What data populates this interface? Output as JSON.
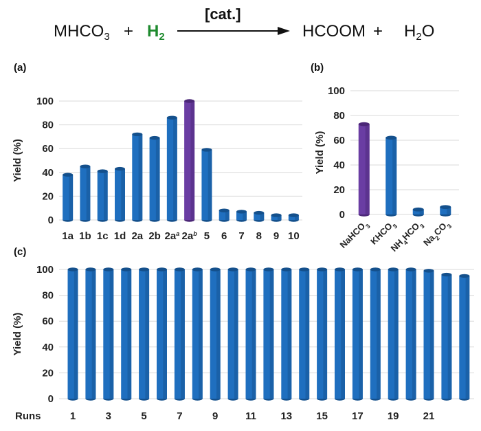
{
  "scheme": {
    "reactant1_main": "MHCO",
    "reactant1_sub": "3",
    "plus1": "+",
    "reactant2_main": "H",
    "reactant2_sub": "2",
    "catalyst": "[cat.]",
    "product1": "HCOOM",
    "plus2": "+",
    "product2_main": "H",
    "product2_sub": "2",
    "product2_tail": "O",
    "reactant2_color": "#1e8a2e"
  },
  "colors": {
    "bar_blue": "#1f6fbf",
    "bar_blue_dark": "#14508c",
    "bar_purple": "#6a3da3",
    "bar_purple_dark": "#4b2777",
    "grid": "#d9d9d9"
  },
  "chart_data": [
    {
      "panel": "(a)",
      "type": "bar",
      "ylabel": "Yield (%)",
      "ylim": [
        0,
        100
      ],
      "yticks": [
        0,
        20,
        40,
        60,
        80,
        100
      ],
      "categories": [
        {
          "base": "1a",
          "sup": ""
        },
        {
          "base": "1b",
          "sup": ""
        },
        {
          "base": "1c",
          "sup": ""
        },
        {
          "base": "1d",
          "sup": ""
        },
        {
          "base": "2a",
          "sup": ""
        },
        {
          "base": "2b",
          "sup": ""
        },
        {
          "base": "2a",
          "sup": "a"
        },
        {
          "base": "2a",
          "sup": "b"
        },
        {
          "base": "5",
          "sup": ""
        },
        {
          "base": "6",
          "sup": ""
        },
        {
          "base": "7",
          "sup": ""
        },
        {
          "base": "8",
          "sup": ""
        },
        {
          "base": "9",
          "sup": ""
        },
        {
          "base": "10",
          "sup": ""
        }
      ],
      "values": [
        38,
        45,
        41,
        43,
        72,
        69,
        86,
        100,
        59,
        8,
        7,
        6,
        4,
        4
      ],
      "highlight_index": 7
    },
    {
      "panel": "(b)",
      "type": "bar",
      "ylabel": "Yield (%)",
      "ylim": [
        0,
        100
      ],
      "yticks": [
        0,
        20,
        40,
        60,
        80,
        100
      ],
      "categories": [
        {
          "parts": [
            {
              "t": "NaHCO",
              "s": ""
            },
            {
              "t": "3",
              "s": "sub"
            }
          ]
        },
        {
          "parts": [
            {
              "t": "KHCO",
              "s": ""
            },
            {
              "t": "3",
              "s": "sub"
            }
          ]
        },
        {
          "parts": [
            {
              "t": "NH",
              "s": ""
            },
            {
              "t": "4",
              "s": "sub"
            },
            {
              "t": "HCO",
              "s": ""
            },
            {
              "t": "3",
              "s": "sub"
            }
          ]
        },
        {
          "parts": [
            {
              "t": "Na",
              "s": ""
            },
            {
              "t": "2",
              "s": "sub"
            },
            {
              "t": "CO",
              "s": ""
            },
            {
              "t": "3",
              "s": "sub"
            }
          ]
        }
      ],
      "values": [
        73,
        62,
        4,
        6
      ],
      "highlight_index": 0
    },
    {
      "panel": "(c)",
      "type": "bar",
      "ylabel": "Yield (%)",
      "xlabel": "Runs",
      "ylim": [
        0,
        100
      ],
      "yticks": [
        0,
        20,
        40,
        60,
        80,
        100
      ],
      "tick_labels": [
        "1",
        "3",
        "5",
        "7",
        "9",
        "11",
        "13",
        "15",
        "17",
        "19",
        "21"
      ],
      "values": [
        100,
        100,
        100,
        100,
        100,
        100,
        100,
        100,
        100,
        100,
        100,
        100,
        100,
        100,
        100,
        100,
        100,
        100,
        100,
        100,
        99,
        96,
        95
      ],
      "highlight_index": -1
    }
  ]
}
